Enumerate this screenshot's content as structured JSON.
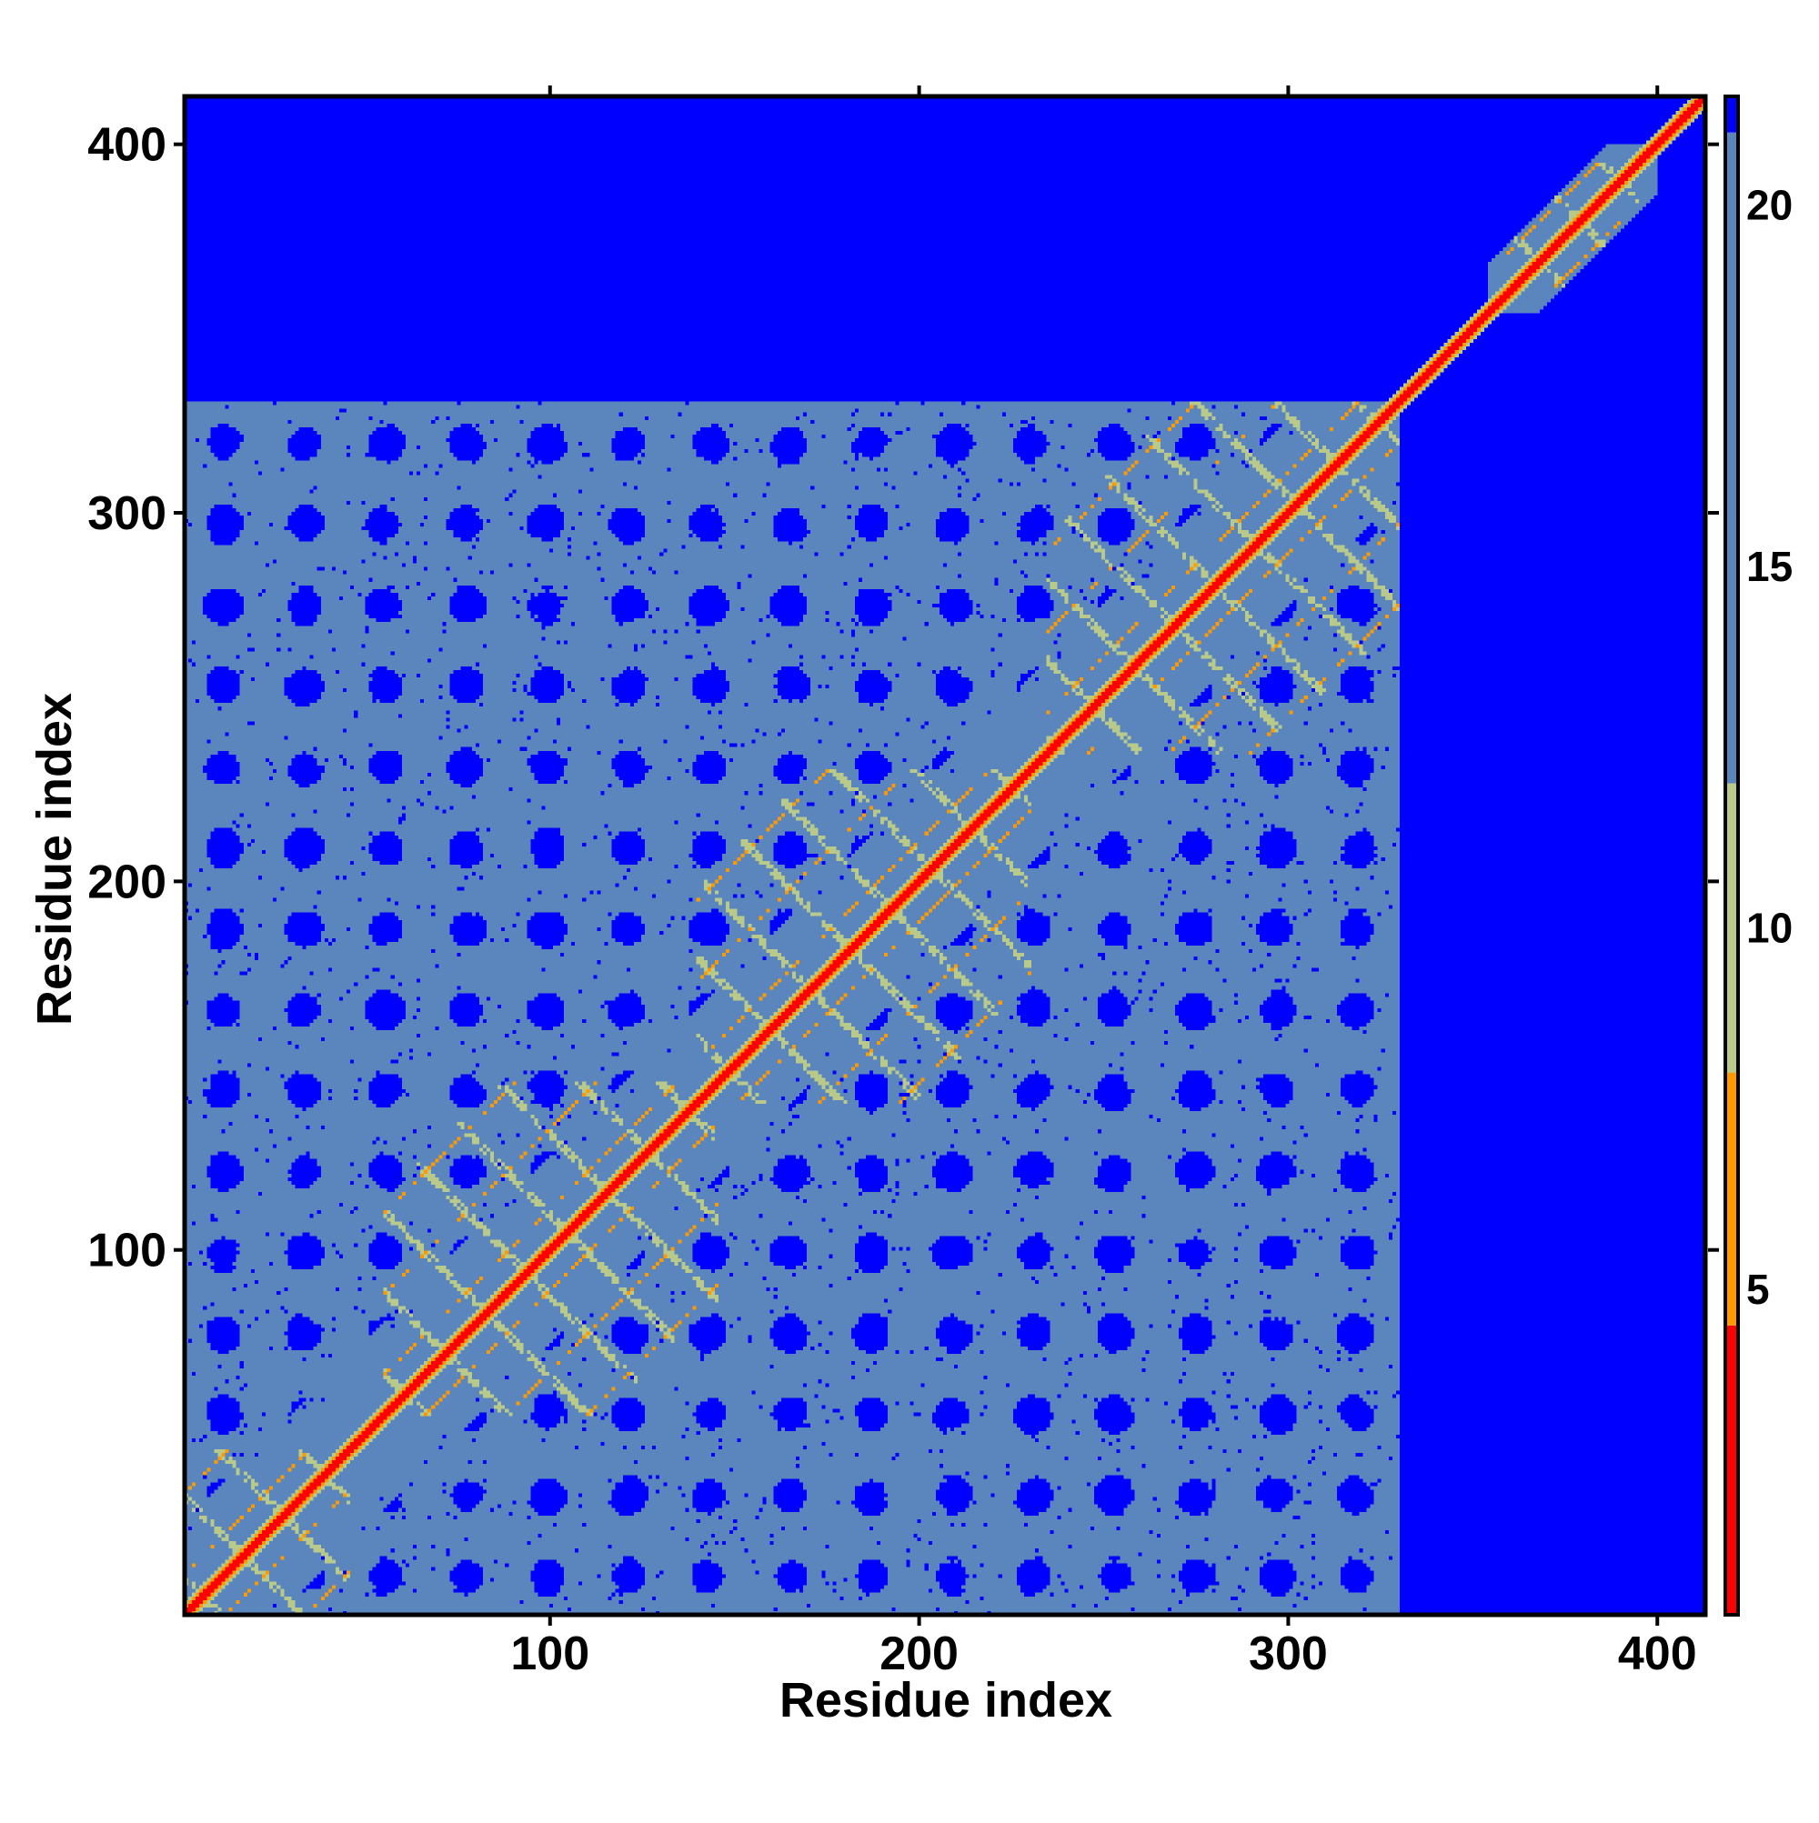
{
  "chart_data": {
    "type": "heatmap",
    "title": "",
    "xlabel": "Residue index",
    "ylabel": "Residue index",
    "xlim": [
      1,
      413
    ],
    "ylim": [
      1,
      413
    ],
    "x_ticks": [
      "100",
      "200",
      "300",
      "400"
    ],
    "y_ticks": [
      "100",
      "200",
      "300",
      "400"
    ],
    "colorbar": {
      "range": [
        0.5,
        21.5
      ],
      "ticks": [
        "5",
        "10",
        "15",
        "20"
      ],
      "colors": {
        "low": "#ff0000",
        "mid_low": "#ff9900",
        "mid": "#b8c98a",
        "high": "#5a86bd",
        "max": "#0000ff"
      },
      "breaks": [
        4.5,
        8.0,
        12.0,
        21.0
      ]
    },
    "matrix_description": "symmetric residue-residue distance map; red diagonal (distance ~0) and crossing contact stripes, steel-blue ordered region roughly residues 1-330, blue background above ~21",
    "domains": [
      {
        "from": 1,
        "to": 45
      },
      {
        "from": 55,
        "to": 145
      },
      {
        "from": 140,
        "to": 230
      },
      {
        "from": 235,
        "to": 330
      },
      {
        "from": 360,
        "to": 395
      }
    ],
    "grid": false,
    "legend": "right colorbar"
  }
}
